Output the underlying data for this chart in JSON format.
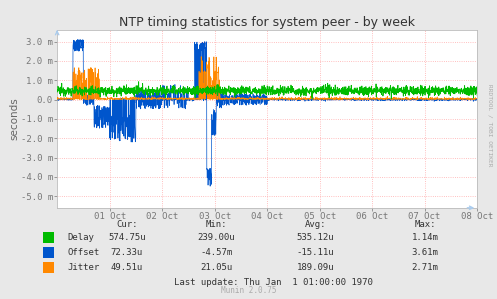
{
  "title": "NTP timing statistics for system peer - by week",
  "ylabel": "seconds",
  "background_color": "#e8e8e8",
  "plot_bg_color": "#ffffff",
  "grid_color": "#ffaaaa",
  "x_labels": [
    "01 Oct",
    "02 Oct",
    "03 Oct",
    "04 Oct",
    "05 Oct",
    "06 Oct",
    "07 Oct",
    "08 Oct"
  ],
  "y_ticks": [
    -5.0,
    -4.0,
    -3.0,
    -2.0,
    -1.0,
    0.0,
    1.0,
    2.0,
    3.0
  ],
  "y_tick_labels": [
    "-5.0 m",
    "-4.0 m",
    "-3.0 m",
    "-2.0 m",
    "-1.0 m",
    "0.0",
    "1.0 m",
    "2.0 m",
    "3.0 m"
  ],
  "ylim": [
    -5.6,
    3.6
  ],
  "delay_color": "#00bb00",
  "offset_color": "#0055cc",
  "jitter_color": "#ff8800",
  "stats_headers": [
    "Cur:",
    "Min:",
    "Avg:",
    "Max:"
  ],
  "stats_rows": [
    [
      "Delay",
      "574.75u",
      "239.00u",
      "535.12u",
      "1.14m"
    ],
    [
      "Offset",
      "72.33u",
      "-4.57m",
      "-15.11u",
      "3.61m"
    ],
    [
      "Jitter",
      "49.51u",
      "21.05u",
      "189.09u",
      "2.71m"
    ]
  ],
  "last_update": "Last update: Thu Jan  1 01:00:00 1970",
  "munin_version": "Munin 2.0.75",
  "rrdtool_label": "RRDTOOL / TOBI OETIKER",
  "arrow_color": "#aaccee"
}
